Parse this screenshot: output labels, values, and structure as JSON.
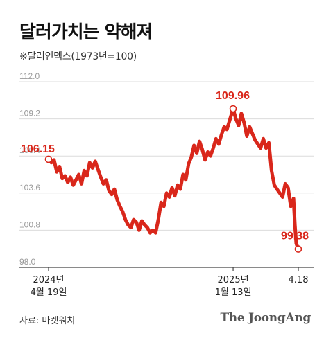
{
  "header": {
    "title": "달러가치는 약해져",
    "subtitle": "※달러인덱스(1973년=100)"
  },
  "footer": {
    "source": "자료: 마켓워치",
    "logo": "The JoongAng"
  },
  "colors": {
    "line": "#d9271b",
    "grid": "#dcdcdc",
    "axis": "#444444",
    "tick_text": "#9a9a9a"
  },
  "chart_data": {
    "type": "line",
    "y_ticks": [
      "112.0",
      "109.2",
      "106.4",
      "103.6",
      "100.8",
      "98.0"
    ],
    "y_tick_values": [
      112.0,
      109.2,
      106.4,
      103.6,
      100.8,
      98.0
    ],
    "ylim": [
      98.0,
      112.0
    ],
    "x_labels": [
      {
        "line1": "2024년",
        "line2": "4월 19일",
        "x": 0
      },
      {
        "line1": "2025년",
        "line2": "1월 13일",
        "x": 269
      },
      {
        "line1": "4.18",
        "line2": "",
        "x": 364
      }
    ],
    "xlim": [
      0,
      364
    ],
    "annotations": [
      {
        "label": "106.15",
        "x": 0,
        "y": 106.15
      },
      {
        "label": "109.96",
        "x": 269,
        "y": 109.96
      },
      {
        "label": "99.38",
        "x": 364,
        "y": 99.38
      }
    ],
    "series": [
      {
        "values": [
          [
            0,
            106.15
          ],
          [
            4,
            105.9
          ],
          [
            8,
            106.1
          ],
          [
            12,
            105.2
          ],
          [
            16,
            105.6
          ],
          [
            20,
            104.7
          ],
          [
            24,
            104.9
          ],
          [
            28,
            104.4
          ],
          [
            32,
            104.8
          ],
          [
            36,
            104.2
          ],
          [
            40,
            104.6
          ],
          [
            44,
            105.0
          ],
          [
            48,
            104.3
          ],
          [
            52,
            105.3
          ],
          [
            56,
            104.9
          ],
          [
            60,
            105.9
          ],
          [
            64,
            105.5
          ],
          [
            68,
            106.0
          ],
          [
            72,
            105.4
          ],
          [
            76,
            104.8
          ],
          [
            80,
            104.3
          ],
          [
            84,
            104.6
          ],
          [
            88,
            103.8
          ],
          [
            92,
            103.5
          ],
          [
            96,
            103.9
          ],
          [
            100,
            103.1
          ],
          [
            104,
            102.6
          ],
          [
            108,
            102.2
          ],
          [
            112,
            101.6
          ],
          [
            116,
            101.2
          ],
          [
            120,
            101.0
          ],
          [
            124,
            101.6
          ],
          [
            128,
            101.4
          ],
          [
            132,
            100.8
          ],
          [
            136,
            101.5
          ],
          [
            140,
            101.2
          ],
          [
            144,
            101.0
          ],
          [
            148,
            100.6
          ],
          [
            152,
            100.8
          ],
          [
            156,
            100.6
          ],
          [
            160,
            101.6
          ],
          [
            164,
            102.9
          ],
          [
            168,
            102.6
          ],
          [
            172,
            103.6
          ],
          [
            176,
            103.3
          ],
          [
            180,
            104.0
          ],
          [
            184,
            103.4
          ],
          [
            188,
            104.2
          ],
          [
            192,
            103.9
          ],
          [
            196,
            105.0
          ],
          [
            200,
            104.6
          ],
          [
            204,
            105.8
          ],
          [
            208,
            106.3
          ],
          [
            212,
            107.2
          ],
          [
            216,
            106.6
          ],
          [
            220,
            107.5
          ],
          [
            224,
            106.9
          ],
          [
            228,
            106.1
          ],
          [
            232,
            106.7
          ],
          [
            236,
            106.4
          ],
          [
            240,
            107.0
          ],
          [
            244,
            107.7
          ],
          [
            248,
            107.3
          ],
          [
            252,
            108.0
          ],
          [
            256,
            108.6
          ],
          [
            260,
            108.4
          ],
          [
            264,
            109.1
          ],
          [
            269,
            109.96
          ],
          [
            273,
            109.2
          ],
          [
            277,
            108.7
          ],
          [
            281,
            109.6
          ],
          [
            285,
            108.9
          ],
          [
            289,
            107.9
          ],
          [
            293,
            108.6
          ],
          [
            297,
            108.1
          ],
          [
            301,
            107.6
          ],
          [
            305,
            107.3
          ],
          [
            309,
            107.0
          ],
          [
            313,
            107.7
          ],
          [
            317,
            107.0
          ],
          [
            321,
            107.4
          ],
          [
            325,
            105.3
          ],
          [
            329,
            104.2
          ],
          [
            333,
            103.9
          ],
          [
            337,
            103.6
          ],
          [
            341,
            103.3
          ],
          [
            345,
            104.3
          ],
          [
            349,
            104.0
          ],
          [
            353,
            102.6
          ],
          [
            357,
            103.2
          ],
          [
            359,
            101.2
          ],
          [
            361,
            99.8
          ],
          [
            364,
            99.38
          ]
        ]
      }
    ]
  }
}
